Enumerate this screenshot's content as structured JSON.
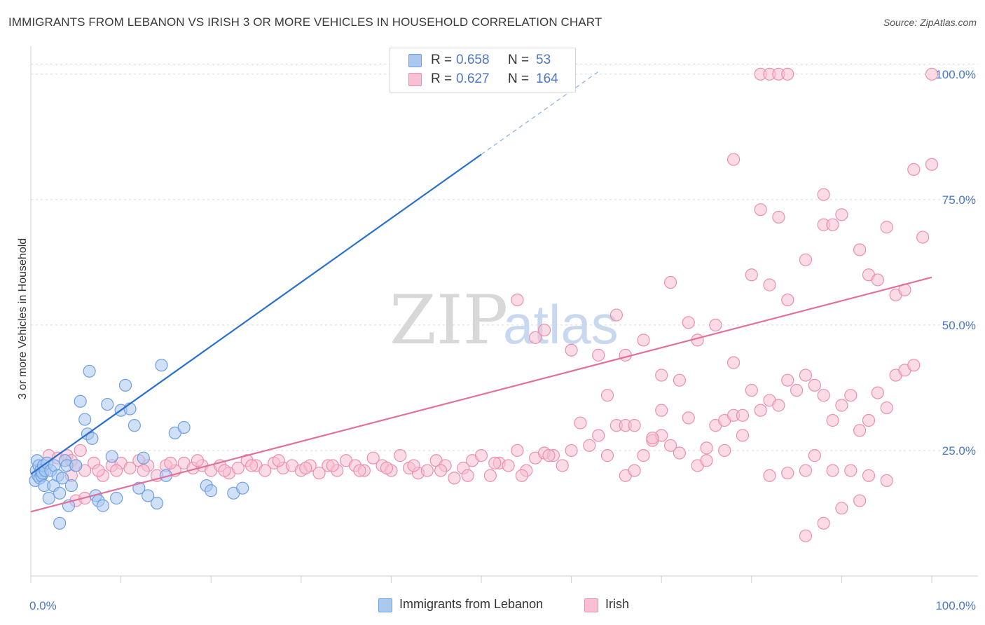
{
  "header": {
    "title": "IMMIGRANTS FROM LEBANON VS IRISH 3 OR MORE VEHICLES IN HOUSEHOLD CORRELATION CHART",
    "source": "Source: ZipAtlas.com"
  },
  "watermark": {
    "zip": "ZIP",
    "atlas": "atlas"
  },
  "legend_top": {
    "rows": [
      {
        "r_label": "R =",
        "r_value": "0.658",
        "n_label": "N =",
        "n_value": "53"
      },
      {
        "r_label": "R =",
        "r_value": "0.627",
        "n_label": "N =",
        "n_value": "164"
      }
    ]
  },
  "legend_bottom": {
    "series_a": "Immigrants from Lebanon",
    "series_b": "Irish"
  },
  "colors": {
    "blue_fill": "#aac8f0",
    "blue_stroke": "#6f9fe0",
    "blue_line": "#2a6fce",
    "pink_fill": "#f8c0d2",
    "pink_stroke": "#eb8fae",
    "pink_line": "#e2709a",
    "tick_text": "#4a78c6",
    "grid": "#d9d9d9"
  },
  "chart_data": {
    "type": "scatter",
    "title": "IMMIGRANTS FROM LEBANON VS IRISH 3 OR MORE VEHICLES IN HOUSEHOLD CORRELATION CHART",
    "xlabel": "",
    "ylabel": "3 or more Vehicles in Household",
    "xlim": [
      0,
      100
    ],
    "ylim": [
      0,
      105
    ],
    "x_tick_labels": [
      "0.0%",
      "100.0%"
    ],
    "y_tick_values": [
      25,
      50,
      75,
      100
    ],
    "y_tick_labels": [
      "25.0%",
      "50.0%",
      "75.0%",
      "100.0%"
    ],
    "grid": true,
    "series": [
      {
        "name": "Immigrants from Lebanon",
        "color": "#6f9fe0",
        "r": 0.658,
        "n": 53,
        "trend": {
          "x0": 0,
          "y0": 20.3,
          "x1": 50,
          "y1": 84,
          "dashed_to_x": 63,
          "dashed_to_y": 100.5
        },
        "points": [
          [
            0.5,
            19
          ],
          [
            0.6,
            21
          ],
          [
            0.7,
            23
          ],
          [
            0.8,
            20
          ],
          [
            0.9,
            22
          ],
          [
            1.0,
            19.5
          ],
          [
            1.1,
            21
          ],
          [
            1.2,
            20
          ],
          [
            1.3,
            20.5
          ],
          [
            1.4,
            22
          ],
          [
            1.5,
            18
          ],
          [
            1.6,
            21
          ],
          [
            1.8,
            22.5
          ],
          [
            2.0,
            15.5
          ],
          [
            2.2,
            21
          ],
          [
            2.5,
            18
          ],
          [
            2.6,
            22
          ],
          [
            3.0,
            20
          ],
          [
            3.2,
            16.5
          ],
          [
            3.5,
            19.5
          ],
          [
            3.8,
            23
          ],
          [
            4.0,
            22
          ],
          [
            4.2,
            14
          ],
          [
            4.5,
            18
          ],
          [
            5.0,
            22
          ],
          [
            5.5,
            34.8
          ],
          [
            6.0,
            31.2
          ],
          [
            6.3,
            28.3
          ],
          [
            6.5,
            40.8
          ],
          [
            6.8,
            27.4
          ],
          [
            7.2,
            16
          ],
          [
            7.5,
            15
          ],
          [
            8.0,
            14
          ],
          [
            8.5,
            34.2
          ],
          [
            9.0,
            23.8
          ],
          [
            9.5,
            15.5
          ],
          [
            10.0,
            33
          ],
          [
            10.5,
            38
          ],
          [
            11.0,
            33.3
          ],
          [
            11.5,
            30
          ],
          [
            12.0,
            17.5
          ],
          [
            12.5,
            23.5
          ],
          [
            13.0,
            16
          ],
          [
            14.0,
            14.5
          ],
          [
            14.5,
            42
          ],
          [
            15.0,
            20
          ],
          [
            16.0,
            28.5
          ],
          [
            17.0,
            29.6
          ],
          [
            19.5,
            18
          ],
          [
            20.0,
            17
          ],
          [
            22.5,
            16.5
          ],
          [
            23.5,
            17.5
          ],
          [
            3.2,
            10.5
          ]
        ]
      },
      {
        "name": "Irish",
        "color": "#eb8fae",
        "r": 0.627,
        "n": 164,
        "trend": {
          "x0": 0,
          "y0": 12.8,
          "x1": 100,
          "y1": 59.5
        },
        "points": [
          [
            2,
            24
          ],
          [
            3,
            23.5
          ],
          [
            4,
            24
          ],
          [
            4.5,
            23
          ],
          [
            5,
            22
          ],
          [
            5.5,
            25
          ],
          [
            6,
            21
          ],
          [
            7,
            22.5
          ],
          [
            8,
            20
          ],
          [
            9,
            22
          ],
          [
            10,
            22.5
          ],
          [
            11,
            21.5
          ],
          [
            12,
            23
          ],
          [
            13,
            22
          ],
          [
            14,
            20
          ],
          [
            15,
            22
          ],
          [
            16,
            21
          ],
          [
            17,
            22.5
          ],
          [
            18,
            21.5
          ],
          [
            19,
            22
          ],
          [
            20,
            21
          ],
          [
            21,
            22
          ],
          [
            22,
            20.5
          ],
          [
            23,
            21.5
          ],
          [
            24,
            23
          ],
          [
            25,
            22
          ],
          [
            26,
            21
          ],
          [
            27,
            22.5
          ],
          [
            28,
            21.5
          ],
          [
            29,
            22
          ],
          [
            30,
            21
          ],
          [
            31,
            22
          ],
          [
            32,
            20.5
          ],
          [
            33,
            22
          ],
          [
            34,
            21
          ],
          [
            35,
            23
          ],
          [
            36,
            22
          ],
          [
            37,
            21
          ],
          [
            38,
            23.5
          ],
          [
            39,
            22
          ],
          [
            40,
            21
          ],
          [
            41,
            24
          ],
          [
            42,
            21.5
          ],
          [
            43,
            20.5
          ],
          [
            44,
            21
          ],
          [
            45,
            23
          ],
          [
            46,
            22
          ],
          [
            47,
            19.5
          ],
          [
            48,
            21.5
          ],
          [
            49,
            23
          ],
          [
            50,
            24
          ],
          [
            51,
            20
          ],
          [
            52,
            22.5
          ],
          [
            53,
            22
          ],
          [
            54,
            25
          ],
          [
            55,
            21
          ],
          [
            56,
            23.5
          ],
          [
            57,
            24.5
          ],
          [
            58,
            24
          ],
          [
            59,
            22
          ],
          [
            5,
            15
          ],
          [
            6,
            15.5
          ],
          [
            4.5,
            20
          ],
          [
            7.5,
            21
          ],
          [
            9.5,
            21
          ],
          [
            12.5,
            21
          ],
          [
            15.5,
            22.5
          ],
          [
            18.5,
            23
          ],
          [
            21.5,
            21
          ],
          [
            24.5,
            22
          ],
          [
            27.5,
            23
          ],
          [
            30.5,
            21.5
          ],
          [
            33.5,
            22
          ],
          [
            36.5,
            21
          ],
          [
            39.5,
            21.5
          ],
          [
            42.5,
            22
          ],
          [
            45.5,
            21
          ],
          [
            48.5,
            20
          ],
          [
            51.5,
            22.5
          ],
          [
            54.5,
            20
          ],
          [
            57.5,
            24
          ],
          [
            60,
            25
          ],
          [
            61,
            30.5
          ],
          [
            62,
            26
          ],
          [
            63,
            28
          ],
          [
            64,
            24
          ],
          [
            65,
            30
          ],
          [
            66,
            20
          ],
          [
            67,
            21
          ],
          [
            68,
            24
          ],
          [
            69,
            27
          ],
          [
            70,
            28
          ],
          [
            71,
            26
          ],
          [
            72,
            24.5
          ],
          [
            73,
            31.5
          ],
          [
            74,
            22
          ],
          [
            75,
            25.5
          ],
          [
            76,
            30
          ],
          [
            77,
            31
          ],
          [
            78,
            32
          ],
          [
            79,
            32
          ],
          [
            80,
            37
          ],
          [
            81,
            33
          ],
          [
            82,
            35
          ],
          [
            83,
            34
          ],
          [
            84,
            39
          ],
          [
            85,
            37
          ],
          [
            86,
            40
          ],
          [
            87,
            38
          ],
          [
            88,
            36
          ],
          [
            89,
            31
          ],
          [
            90,
            34
          ],
          [
            91,
            36
          ],
          [
            92,
            29
          ],
          [
            93,
            31
          ],
          [
            94,
            36.5
          ],
          [
            95,
            33.5
          ],
          [
            96,
            40
          ],
          [
            97,
            41
          ],
          [
            98,
            42
          ],
          [
            54,
            55
          ],
          [
            56,
            47.5
          ],
          [
            57,
            49
          ],
          [
            60,
            45
          ],
          [
            63,
            44
          ],
          [
            66,
            44
          ],
          [
            70,
            40
          ],
          [
            74,
            47
          ],
          [
            76,
            50
          ],
          [
            78,
            42.5
          ],
          [
            80,
            60
          ],
          [
            82,
            58
          ],
          [
            84,
            55
          ],
          [
            86,
            63
          ],
          [
            88,
            70
          ],
          [
            90,
            72
          ],
          [
            92,
            65
          ],
          [
            95,
            69.5
          ],
          [
            98,
            81
          ],
          [
            100,
            82
          ],
          [
            78,
            83
          ],
          [
            81,
            73
          ],
          [
            83,
            71.5
          ],
          [
            88,
            76
          ],
          [
            89,
            70
          ],
          [
            93,
            60
          ],
          [
            94,
            59
          ],
          [
            96,
            56
          ],
          [
            97,
            57
          ],
          [
            99,
            67.5
          ],
          [
            71,
            58.5
          ],
          [
            73,
            50.5
          ],
          [
            68,
            47
          ],
          [
            65,
            52
          ],
          [
            64,
            36
          ],
          [
            66,
            30
          ],
          [
            67,
            30
          ],
          [
            69,
            27.5
          ],
          [
            70,
            33
          ],
          [
            72,
            39
          ],
          [
            75,
            23
          ],
          [
            77,
            25
          ],
          [
            79,
            28
          ],
          [
            82,
            20
          ],
          [
            84,
            20.5
          ],
          [
            86,
            8
          ],
          [
            88,
            10.5
          ],
          [
            90,
            13.5
          ],
          [
            92,
            15
          ],
          [
            95,
            19
          ],
          [
            81,
            100
          ],
          [
            82,
            100
          ],
          [
            83,
            100
          ],
          [
            84,
            100
          ],
          [
            100,
            100
          ],
          [
            86,
            21
          ],
          [
            87,
            24
          ],
          [
            89,
            21
          ],
          [
            91,
            21
          ],
          [
            93,
            20
          ]
        ]
      }
    ]
  }
}
